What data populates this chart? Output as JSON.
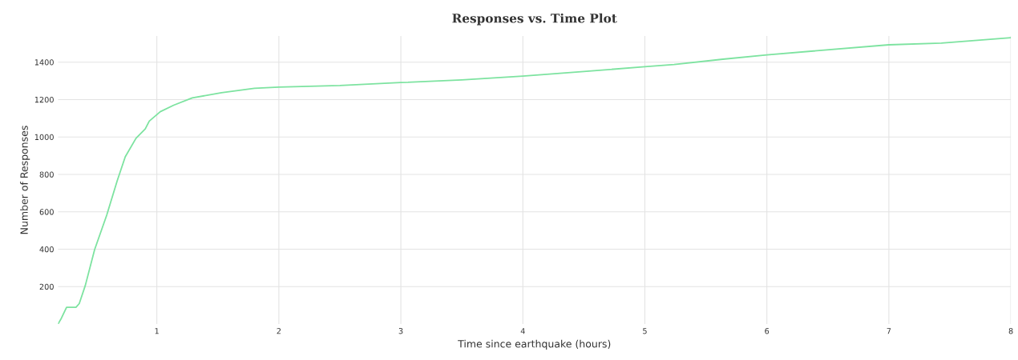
{
  "chart_data": {
    "type": "line",
    "title": "Responses vs. Time Plot",
    "xlabel": "Time since earthquake (hours)",
    "ylabel": "Number of Responses",
    "x": [
      0.19,
      0.217,
      0.26,
      0.337,
      0.364,
      0.414,
      0.49,
      0.589,
      0.675,
      0.741,
      0.829,
      0.905,
      0.938,
      1.028,
      1.138,
      1.29,
      1.53,
      1.8,
      2,
      2.5,
      3,
      3.5,
      4,
      4.5,
      5,
      5.24,
      5.64,
      6,
      7,
      7.43,
      8
    ],
    "series": [
      {
        "color": "#7de3a0",
        "values": [
          0,
          30,
          89,
          89,
          109,
          207,
          398,
          582,
          766,
          894,
          993,
          1043,
          1085,
          1135,
          1170,
          1209,
          1237,
          1260,
          1267,
          1275,
          1291,
          1305,
          1326,
          1350,
          1376,
          1388,
          1416,
          1439,
          1493,
          1502,
          1531
        ]
      }
    ],
    "xlim": [
      0.19,
      8
    ],
    "ylim": [
      0,
      1540
    ],
    "xticks": [
      1,
      2,
      3,
      4,
      5,
      6,
      7,
      8
    ],
    "yticks": [
      200,
      400,
      600,
      800,
      1000,
      1200,
      1400
    ],
    "grid": true,
    "marker": "none",
    "line_style": "solid"
  }
}
